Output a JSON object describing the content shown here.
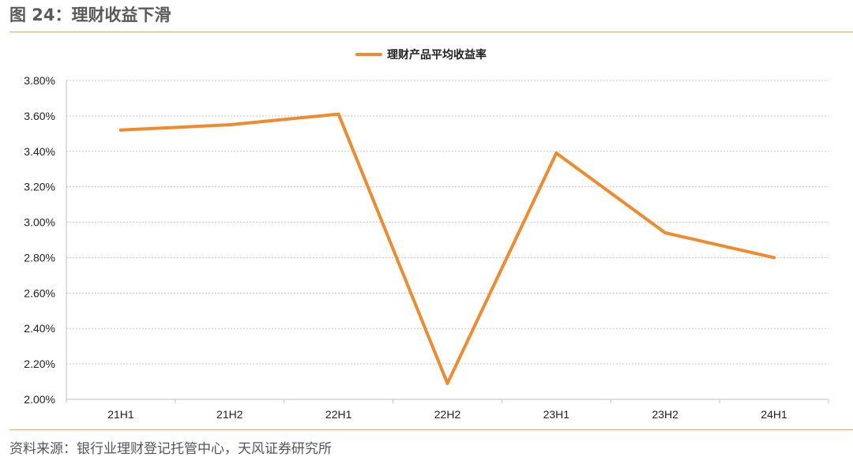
{
  "figure": {
    "title": "图 24：理财收益下滑",
    "source": "资料来源：银行业理财登记托管中心，天风证券研究所"
  },
  "colors": {
    "accent_rule": "#f0a25e",
    "series_line": "#f08a2c"
  },
  "chart_data": {
    "type": "line",
    "categories": [
      "21H1",
      "21H2",
      "22H1",
      "22H2",
      "23H1",
      "23H2",
      "24H1"
    ],
    "series": [
      {
        "name": "理财产品平均收益率",
        "values": [
          3.52,
          3.55,
          3.61,
          2.09,
          3.39,
          2.94,
          2.8
        ]
      }
    ],
    "y_ticks": [
      "2.00%",
      "2.20%",
      "2.40%",
      "2.60%",
      "2.80%",
      "3.00%",
      "3.20%",
      "3.40%",
      "3.60%",
      "3.80%"
    ],
    "ylim": [
      2.0,
      3.8
    ],
    "y_format": "percent",
    "grid": "horizontal dashed",
    "legend": "top-center"
  }
}
